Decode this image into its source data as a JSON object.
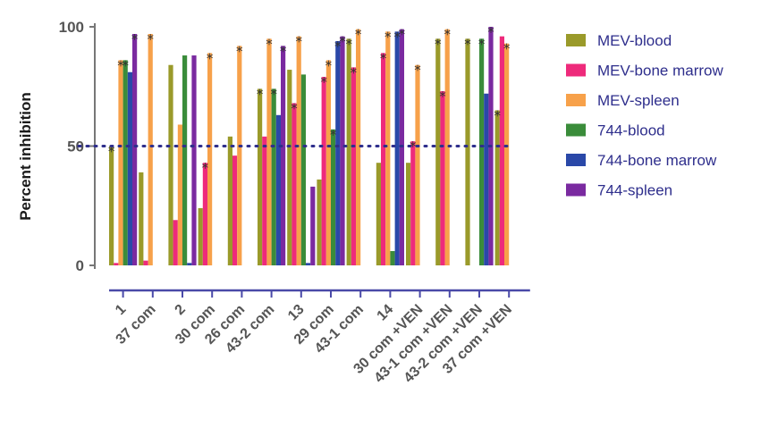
{
  "chart_data": {
    "type": "bar",
    "title": "",
    "xlabel": "",
    "ylabel": "Percent inhibition",
    "ylim": [
      0,
      100
    ],
    "yticks": [
      0,
      50,
      100
    ],
    "reference_line": 50,
    "grid": false,
    "legend_position": "right",
    "categories": [
      "1",
      "37 com",
      "2",
      "30 com",
      "26 com",
      "43-2 com",
      "13",
      "29 com",
      "43-1 com",
      "14",
      "30 com +VEN",
      "43-1 com +VEN",
      "43-2 com +VEN",
      "37 com +VEN"
    ],
    "series": [
      {
        "name": "MEV-blood",
        "color": "#9a9a2a",
        "values": [
          50,
          39,
          84,
          24,
          54,
          74,
          82,
          36,
          95,
          43,
          43,
          95,
          95,
          65
        ],
        "starred": [
          true,
          false,
          false,
          false,
          false,
          true,
          false,
          false,
          true,
          false,
          false,
          true,
          true,
          true
        ]
      },
      {
        "name": "MEV-bone marrow",
        "color": "#ee2a7b",
        "values": [
          1,
          2,
          19,
          43,
          46,
          54,
          68,
          79,
          83,
          89,
          52,
          73,
          0,
          96
        ],
        "starred": [
          false,
          false,
          false,
          true,
          false,
          false,
          true,
          true,
          true,
          true,
          true,
          true,
          false,
          false
        ]
      },
      {
        "name": "MEV-spleen",
        "color": "#f7a14a",
        "values": [
          86,
          97,
          59,
          89,
          92,
          95,
          96,
          86,
          99,
          98,
          84,
          99,
          0,
          93
        ],
        "starred": [
          true,
          true,
          false,
          true,
          true,
          true,
          true,
          true,
          true,
          true,
          true,
          true,
          false,
          true
        ]
      },
      {
        "name": "744-blood",
        "color": "#3a8c3a",
        "values": [
          86,
          0,
          88,
          0,
          0,
          74,
          80,
          57,
          0,
          6,
          0,
          0,
          95,
          0
        ],
        "starred": [
          true,
          false,
          false,
          false,
          false,
          true,
          false,
          true,
          false,
          false,
          false,
          false,
          true,
          false
        ]
      },
      {
        "name": "744-bone marrow",
        "color": "#2a48a8",
        "values": [
          81,
          0,
          1,
          0,
          0,
          63,
          1,
          94,
          0,
          98,
          0,
          0,
          72,
          0
        ],
        "starred": [
          false,
          false,
          false,
          false,
          false,
          false,
          false,
          true,
          false,
          true,
          false,
          false,
          false,
          false
        ]
      },
      {
        "name": "744-spleen",
        "color": "#7a2aa0",
        "values": [
          97,
          0,
          88,
          0,
          0,
          92,
          33,
          96,
          0,
          99,
          0,
          0,
          100,
          0
        ],
        "starred": [
          true,
          false,
          false,
          false,
          false,
          true,
          false,
          true,
          false,
          true,
          false,
          false,
          true,
          false
        ]
      }
    ]
  },
  "star_symbol": "*"
}
